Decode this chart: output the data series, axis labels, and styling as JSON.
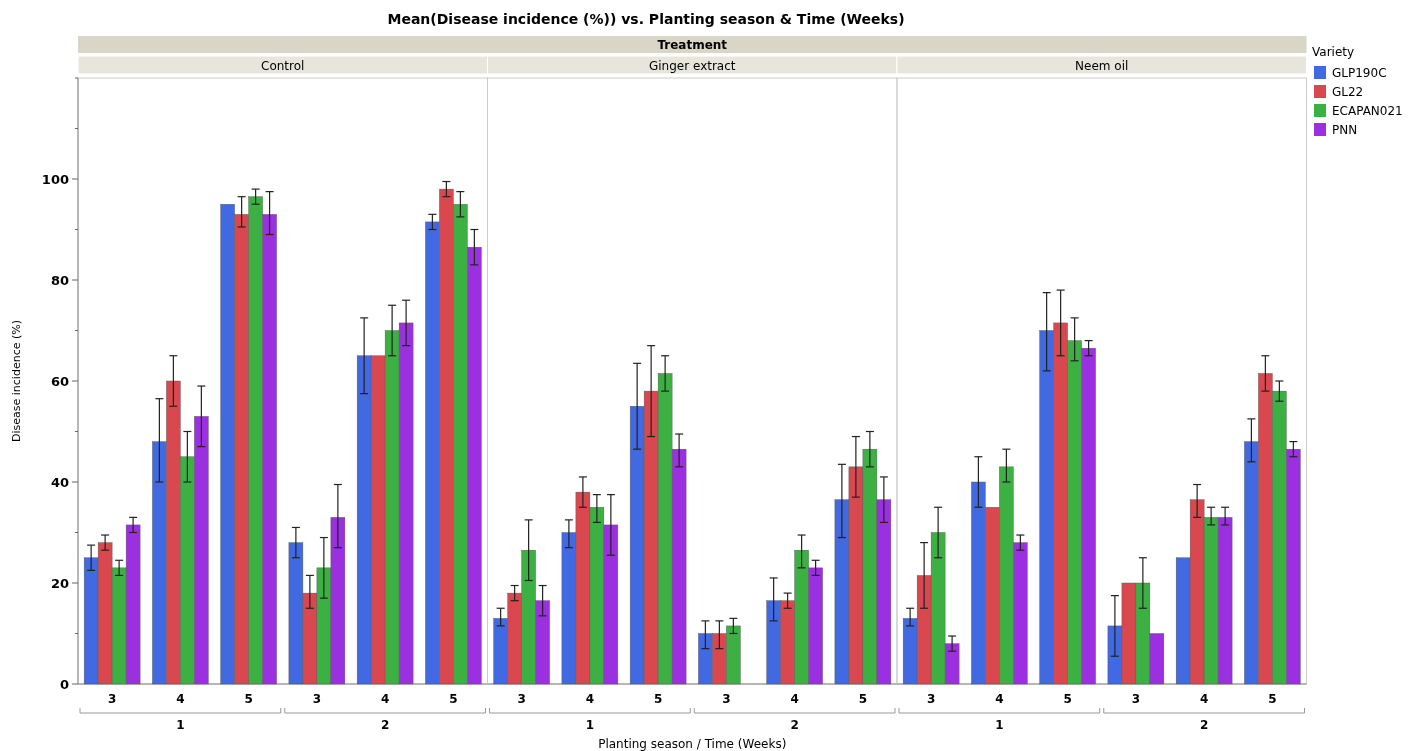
{
  "chart_data": [
    {
      "type": "bar",
      "title": "Control",
      "ylabel": "Disease incidence (%)",
      "annotations": [
        "Mean(Disease incidence (%)) vs. Planting season & Time (Weeks)",
        "Treatment",
        "1",
        "2"
      ],
      "categories": [
        "3",
        "4",
        "5",
        "3",
        "4",
        "5"
      ],
      "ylim": [
        0,
        120
      ],
      "yticks": [
        0,
        {
          "value": 10,
          "label": null
        },
        20,
        {
          "value": 30,
          "label": null
        },
        40,
        {
          "value": 50,
          "label": null
        },
        60,
        {
          "value": 70,
          "label": null
        },
        80,
        {
          "value": 90,
          "label": null
        },
        100,
        {
          "value": 110,
          "label": null
        },
        {
          "value": 120,
          "label": null
        }
      ],
      "series": [
        {
          "color": "#4169e1",
          "values": [
            25,
            48,
            95,
            28,
            65,
            91.5
          ],
          "errors": [
            [
              22.5,
              27.5
            ],
            [
              40,
              56.5
            ],
            null,
            [
              25,
              31
            ],
            [
              57.5,
              72.5
            ],
            [
              90,
              93
            ]
          ]
        },
        {
          "color": "#d9474f",
          "values": [
            28,
            60,
            93,
            18,
            65,
            98
          ],
          "errors": [
            [
              26.5,
              29.5
            ],
            [
              55,
              65
            ],
            [
              90.5,
              96.5
            ],
            [
              15,
              21.5
            ],
            null,
            [
              96.5,
              99.5
            ]
          ]
        },
        {
          "color": "#3cb043",
          "values": [
            23,
            45,
            96.5,
            23,
            70,
            95
          ],
          "errors": [
            [
              21.5,
              24.5
            ],
            [
              40,
              50
            ],
            [
              95,
              98
            ],
            [
              17,
              29
            ],
            [
              65,
              75
            ],
            [
              92.5,
              97.5
            ]
          ]
        },
        {
          "color": "#9b30e0",
          "values": [
            31.5,
            53,
            93,
            33,
            71.5,
            86.5
          ],
          "errors": [
            [
              30,
              33
            ],
            [
              47,
              59
            ],
            [
              89,
              97.5
            ],
            [
              27,
              39.5
            ],
            [
              67,
              76
            ],
            [
              83,
              90
            ]
          ]
        }
      ]
    },
    {
      "type": "bar",
      "title": "Ginger extract",
      "xlabel": "Planting season / Time (Weeks)",
      "tick_labels": "x",
      "annotations": [
        "1",
        "2"
      ],
      "categories": [
        "3",
        "4",
        "5",
        "3",
        "4",
        "5"
      ],
      "ylim": [
        0,
        120
      ],
      "series": [
        {
          "color": "#4169e1",
          "values": [
            13,
            30,
            55,
            10,
            16.5,
            36.5
          ],
          "errors": [
            [
              11.5,
              15
            ],
            [
              27,
              32.5
            ],
            [
              46.5,
              63.5
            ],
            [
              7,
              12.5
            ],
            [
              12.5,
              21
            ],
            [
              29,
              43.5
            ]
          ]
        },
        {
          "color": "#d9474f",
          "values": [
            18,
            38,
            58,
            10,
            16.5,
            43
          ],
          "errors": [
            [
              16.5,
              19.5
            ],
            [
              35,
              41
            ],
            [
              49,
              67
            ],
            [
              7,
              12.5
            ],
            [
              15,
              18
            ],
            [
              37,
              49
            ]
          ]
        },
        {
          "color": "#3cb043",
          "values": [
            26.5,
            35,
            61.5,
            11.5,
            26.5,
            46.5
          ],
          "errors": [
            [
              20.5,
              32.5
            ],
            [
              32,
              37.5
            ],
            [
              58,
              65
            ],
            [
              10,
              13
            ],
            [
              23,
              29.5
            ],
            [
              43,
              50
            ]
          ]
        },
        {
          "color": "#9b30e0",
          "values": [
            16.5,
            31.5,
            46.5,
            null,
            23,
            36.5
          ],
          "errors": [
            [
              13.5,
              19.5
            ],
            [
              25.5,
              37.5
            ],
            [
              43,
              49.5
            ],
            null,
            [
              21.5,
              24.5
            ],
            [
              32,
              41
            ]
          ]
        }
      ]
    },
    {
      "type": "bar",
      "title": "Neem  oil",
      "tick_labels": "x",
      "legend": "right",
      "legend_title": "Variety",
      "annotations": [
        "1",
        "2"
      ],
      "categories": [
        "3",
        "4",
        "5",
        "3",
        "4",
        "5"
      ],
      "ylim": [
        0,
        120
      ],
      "series": [
        {
          "name": "GLP190C",
          "color": "#4169e1",
          "values": [
            13,
            40,
            70,
            11.5,
            25,
            48
          ],
          "errors": [
            [
              11.5,
              15
            ],
            [
              35,
              45
            ],
            [
              62,
              77.5
            ],
            [
              5.5,
              17.5
            ],
            null,
            [
              44,
              52.5
            ]
          ]
        },
        {
          "name": "GL22",
          "color": "#d9474f",
          "values": [
            21.5,
            35,
            71.5,
            20,
            36.5,
            61.5
          ],
          "errors": [
            [
              15,
              28
            ],
            null,
            [
              65,
              78
            ],
            null,
            [
              33,
              39.5
            ],
            [
              58,
              65
            ]
          ]
        },
        {
          "name": "ECAPAN021",
          "color": "#3cb043",
          "values": [
            30,
            43,
            68,
            20,
            33,
            58
          ],
          "errors": [
            [
              25,
              35
            ],
            [
              40,
              46.5
            ],
            [
              64,
              72.5
            ],
            [
              15,
              25
            ],
            [
              31.5,
              35
            ],
            [
              56,
              60
            ]
          ]
        },
        {
          "name": "PNN",
          "color": "#9b30e0",
          "values": [
            8,
            28,
            66.5,
            10,
            33,
            46.5
          ],
          "errors": [
            [
              6.5,
              9.5
            ],
            [
              26.5,
              29.5
            ],
            [
              65,
              68
            ],
            null,
            [
              31.5,
              35
            ],
            [
              45,
              48
            ]
          ]
        }
      ]
    }
  ]
}
